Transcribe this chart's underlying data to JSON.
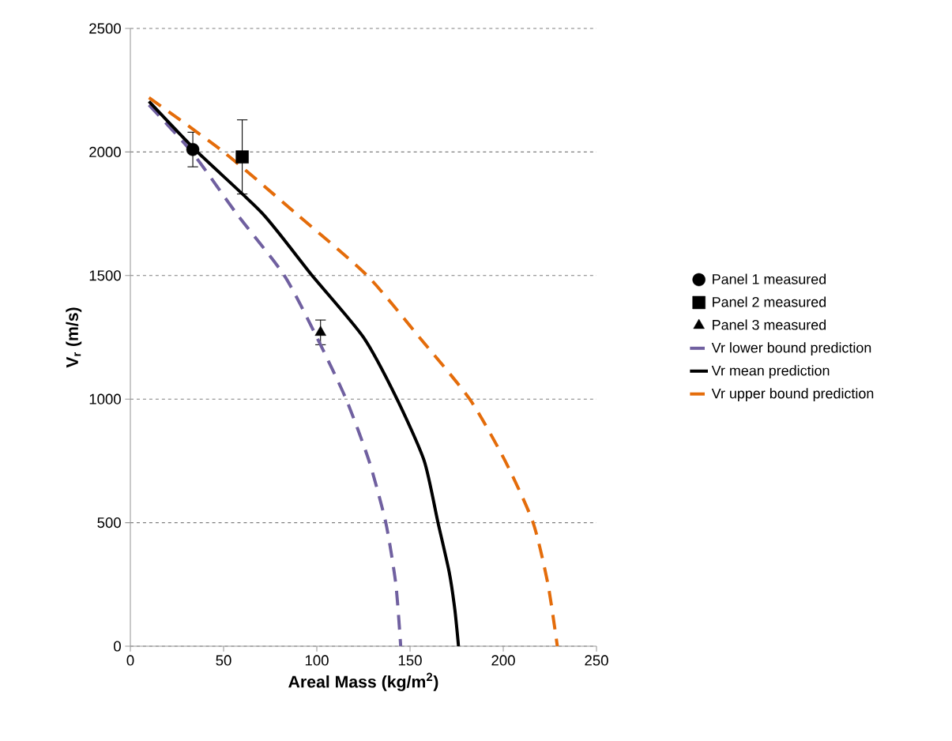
{
  "chart_data": {
    "type": "line",
    "xlabel": "Areal Mass (kg/m$^{2}$)",
    "ylabel": "V$_{r}$ (m/s)",
    "xlim": [
      0,
      250
    ],
    "xticks": [
      0,
      50,
      100,
      150,
      200,
      250
    ],
    "ylim": [
      0,
      2500
    ],
    "yticks": [
      0,
      500,
      1000,
      1500,
      2000,
      2500
    ],
    "grid": "y",
    "legend": "right",
    "series": [
      {
        "name": "Panel 1 measured",
        "type": "scatter",
        "marker": "circle",
        "color": "#000000",
        "x": [
          33.5
        ],
        "values": [
          2010
        ],
        "errors": [
          70
        ]
      },
      {
        "name": "Panel 2 measured",
        "type": "scatter",
        "marker": "square",
        "color": "#000000",
        "x": [
          60
        ],
        "values": [
          1980
        ],
        "errors": [
          150
        ]
      },
      {
        "name": "Panel 3 measured",
        "type": "scatter",
        "marker": "triangle",
        "color": "#000000",
        "x": [
          102
        ],
        "values": [
          1270
        ],
        "errors": [
          50
        ]
      },
      {
        "name": "Vr lower bound prediction",
        "line_style": "dashed",
        "color": "#7060a0",
        "x": [
          10,
          33,
          57,
          82.6,
          100,
          115.7,
          128,
          137,
          142.4,
          145
        ],
        "values": [
          2190,
          2000,
          1750,
          1500,
          1250,
          1000,
          750,
          500,
          250,
          0
        ]
      },
      {
        "name": "Vr mean prediction",
        "line_style": "solid",
        "color": "#000000",
        "x": [
          10,
          36,
          71,
          97.5,
          125,
          143,
          157.6,
          165,
          171,
          174,
          176
        ],
        "values": [
          2205,
          2000,
          1750,
          1500,
          1250,
          1000,
          750,
          500,
          300,
          150,
          0
        ]
      },
      {
        "name": "Vr upper bound prediction",
        "line_style": "dashed",
        "color": "#e46c0a",
        "x": [
          10,
          50,
          89,
          127,
          155,
          182,
          201,
          216,
          224,
          229
        ],
        "values": [
          2220,
          2000,
          1750,
          1500,
          1250,
          1000,
          750,
          500,
          250,
          0
        ]
      }
    ]
  }
}
